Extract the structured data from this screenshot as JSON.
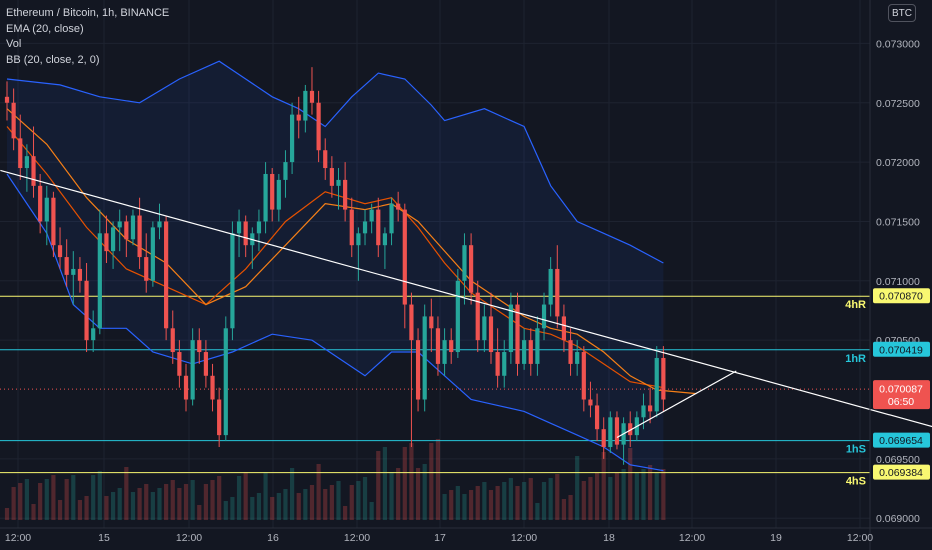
{
  "legend": {
    "symbol": "Ethereum / Bitcoin, 1h, BINANCE",
    "ema": "EMA (20, close)",
    "vol": "Vol",
    "bb": "BB (20, close, 2, 0)"
  },
  "currency_badge": "BTC",
  "colors": {
    "background": "#131722",
    "grid": "#1e2330",
    "up": "#26a69a",
    "down": "#ef5350",
    "bb": "#2962ff",
    "ema": "#f57f17",
    "yellow_level": "#f9f871",
    "cyan_level": "#26c6da",
    "trendline": "#ffffff"
  },
  "chart_data": {
    "type": "candlestick",
    "interval": "1h",
    "grid": true,
    "y_axis": {
      "scale": "linear",
      "range": [
        0.0689,
        0.0732
      ],
      "ticks": [
        "0.073000",
        "0.072500",
        "0.072000",
        "0.071500",
        "0.071000",
        "0.070500",
        "0.069500",
        "0.069000"
      ]
    },
    "x_axis": {
      "ticks": [
        "12:00",
        "15",
        "12:00",
        "16",
        "12:00",
        "17",
        "12:00",
        "18",
        "12:00",
        "19",
        "12:00"
      ]
    },
    "levels": [
      {
        "label": "4hR",
        "price": "0.070870",
        "value": 0.07087,
        "color": "#f9f871"
      },
      {
        "label": "1hR",
        "price": "0.070419",
        "value": 0.070419,
        "color": "#26c6da"
      },
      {
        "label": "1hS",
        "price": "0.069654",
        "value": 0.069654,
        "color": "#26c6da"
      },
      {
        "label": "4hS",
        "price": "0.069384",
        "value": 0.069384,
        "color": "#f9f871"
      }
    ],
    "current_price": {
      "price": "0.070087",
      "countdown": "06:50",
      "value": 0.070087
    },
    "trendline": {
      "from": [
        -1,
        0.07193
      ],
      "to": [
        141,
        0.06975
      ]
    },
    "triangle_upper": {
      "from": [
        92,
        0.06968
      ],
      "to": [
        110,
        0.07024
      ]
    },
    "candles": [
      [
        0.07255,
        0.07268,
        0.07235,
        0.0725
      ],
      [
        0.0725,
        0.07262,
        0.0721,
        0.0722
      ],
      [
        0.0722,
        0.0724,
        0.07185,
        0.07195
      ],
      [
        0.07195,
        0.07215,
        0.07175,
        0.07205
      ],
      [
        0.07205,
        0.0723,
        0.0717,
        0.0718
      ],
      [
        0.0718,
        0.0719,
        0.0714,
        0.0715
      ],
      [
        0.0715,
        0.0718,
        0.0713,
        0.0717
      ],
      [
        0.0717,
        0.07175,
        0.0712,
        0.0713
      ],
      [
        0.0713,
        0.07145,
        0.0711,
        0.0712
      ],
      [
        0.0712,
        0.07135,
        0.07095,
        0.07105
      ],
      [
        0.07105,
        0.07125,
        0.0708,
        0.0711
      ],
      [
        0.0711,
        0.0712,
        0.0709,
        0.071
      ],
      [
        0.071,
        0.07115,
        0.0704,
        0.0705
      ],
      [
        0.0705,
        0.07075,
        0.0704,
        0.0706
      ],
      [
        0.0706,
        0.0716,
        0.07055,
        0.0714
      ],
      [
        0.0714,
        0.07155,
        0.07115,
        0.07125
      ],
      [
        0.07125,
        0.0715,
        0.0711,
        0.07145
      ],
      [
        0.07145,
        0.0716,
        0.07125,
        0.0715
      ],
      [
        0.0715,
        0.07155,
        0.0712,
        0.07135
      ],
      [
        0.07135,
        0.0716,
        0.0713,
        0.07155
      ],
      [
        0.07155,
        0.0717,
        0.0711,
        0.0712
      ],
      [
        0.0712,
        0.0714,
        0.0709,
        0.071
      ],
      [
        0.071,
        0.0715,
        0.07095,
        0.07145
      ],
      [
        0.07145,
        0.07165,
        0.07135,
        0.0715
      ],
      [
        0.0715,
        0.07155,
        0.0705,
        0.0706
      ],
      [
        0.0706,
        0.07075,
        0.0703,
        0.0704
      ],
      [
        0.0704,
        0.0705,
        0.0701,
        0.0702
      ],
      [
        0.0702,
        0.0703,
        0.0699,
        0.07
      ],
      [
        0.07,
        0.0706,
        0.06995,
        0.0705
      ],
      [
        0.0705,
        0.0706,
        0.0703,
        0.0704
      ],
      [
        0.0704,
        0.0705,
        0.0701,
        0.0702
      ],
      [
        0.0702,
        0.0703,
        0.0699,
        0.07
      ],
      [
        0.07,
        0.0701,
        0.0696,
        0.0697
      ],
      [
        0.0697,
        0.0707,
        0.06965,
        0.0706
      ],
      [
        0.0706,
        0.0715,
        0.0705,
        0.0714
      ],
      [
        0.0714,
        0.0716,
        0.0712,
        0.0715
      ],
      [
        0.0715,
        0.07155,
        0.0712,
        0.0713
      ],
      [
        0.0713,
        0.07145,
        0.0711,
        0.0714
      ],
      [
        0.0714,
        0.0716,
        0.07125,
        0.0715
      ],
      [
        0.0715,
        0.072,
        0.0714,
        0.0719
      ],
      [
        0.0719,
        0.07195,
        0.0715,
        0.0716
      ],
      [
        0.0716,
        0.0719,
        0.0715,
        0.07185
      ],
      [
        0.07185,
        0.0721,
        0.0717,
        0.072
      ],
      [
        0.072,
        0.0725,
        0.0719,
        0.0724
      ],
      [
        0.0724,
        0.07255,
        0.0722,
        0.07235
      ],
      [
        0.07235,
        0.07265,
        0.07225,
        0.0726
      ],
      [
        0.0726,
        0.0728,
        0.0724,
        0.0725
      ],
      [
        0.0725,
        0.0726,
        0.072,
        0.0721
      ],
      [
        0.0721,
        0.0722,
        0.07185,
        0.07195
      ],
      [
        0.07195,
        0.07205,
        0.0717,
        0.0718
      ],
      [
        0.0718,
        0.07195,
        0.0716,
        0.07185
      ],
      [
        0.07185,
        0.072,
        0.0715,
        0.0716
      ],
      [
        0.0716,
        0.0717,
        0.0712,
        0.0713
      ],
      [
        0.0713,
        0.07145,
        0.071,
        0.0714
      ],
      [
        0.0714,
        0.0716,
        0.0713,
        0.0715
      ],
      [
        0.0715,
        0.07165,
        0.0714,
        0.0716
      ],
      [
        0.0716,
        0.0717,
        0.0712,
        0.0713
      ],
      [
        0.0713,
        0.07145,
        0.0711,
        0.0714
      ],
      [
        0.0714,
        0.0717,
        0.0713,
        0.07165
      ],
      [
        0.07165,
        0.07175,
        0.0715,
        0.0716
      ],
      [
        0.0716,
        0.07165,
        0.0706,
        0.0708
      ],
      [
        0.0708,
        0.0709,
        0.0696,
        0.0705
      ],
      [
        0.0705,
        0.0706,
        0.0699,
        0.07
      ],
      [
        0.07,
        0.0708,
        0.0699,
        0.0707
      ],
      [
        0.0707,
        0.07085,
        0.0704,
        0.0706
      ],
      [
        0.0706,
        0.0707,
        0.0702,
        0.0703
      ],
      [
        0.0703,
        0.0706,
        0.0702,
        0.0705
      ],
      [
        0.0705,
        0.0706,
        0.0703,
        0.0704
      ],
      [
        0.0704,
        0.0711,
        0.07035,
        0.071
      ],
      [
        0.071,
        0.0714,
        0.0708,
        0.0713
      ],
      [
        0.0713,
        0.0714,
        0.0708,
        0.0709
      ],
      [
        0.0709,
        0.071,
        0.0704,
        0.0705
      ],
      [
        0.0705,
        0.0708,
        0.0704,
        0.0707
      ],
      [
        0.0707,
        0.0709,
        0.0703,
        0.0704
      ],
      [
        0.0704,
        0.0706,
        0.0701,
        0.0702
      ],
      [
        0.0702,
        0.0705,
        0.0701,
        0.0704
      ],
      [
        0.0704,
        0.0709,
        0.0703,
        0.0708
      ],
      [
        0.0708,
        0.0709,
        0.0702,
        0.0703
      ],
      [
        0.0703,
        0.0706,
        0.07025,
        0.0705
      ],
      [
        0.0705,
        0.0706,
        0.0702,
        0.0703
      ],
      [
        0.0703,
        0.0707,
        0.0702,
        0.0706
      ],
      [
        0.0706,
        0.0709,
        0.0705,
        0.0708
      ],
      [
        0.0708,
        0.0712,
        0.0707,
        0.0711
      ],
      [
        0.0711,
        0.0713,
        0.0706,
        0.0707
      ],
      [
        0.0707,
        0.0708,
        0.0704,
        0.0705
      ],
      [
        0.0705,
        0.0706,
        0.0702,
        0.0703
      ],
      [
        0.0703,
        0.0705,
        0.0702,
        0.0704
      ],
      [
        0.0704,
        0.07045,
        0.0699,
        0.07
      ],
      [
        0.07,
        0.07015,
        0.06985,
        0.06995
      ],
      [
        0.06995,
        0.07005,
        0.06965,
        0.06975
      ],
      [
        0.06975,
        0.06985,
        0.0695,
        0.0696
      ],
      [
        0.0696,
        0.0699,
        0.06955,
        0.06985
      ],
      [
        0.06985,
        0.0699,
        0.06958,
        0.06962
      ],
      [
        0.06962,
        0.06985,
        0.06945,
        0.0698
      ],
      [
        0.0698,
        0.0699,
        0.0696,
        0.0697
      ],
      [
        0.0697,
        0.0699,
        0.06965,
        0.06985
      ],
      [
        0.06985,
        0.07005,
        0.06975,
        0.06995
      ],
      [
        0.06995,
        0.0701,
        0.0698,
        0.0699
      ],
      [
        0.0699,
        0.07045,
        0.06985,
        0.07035
      ],
      [
        0.07035,
        0.07045,
        0.0699,
        0.07
      ]
    ],
    "bb_upper": [
      [
        0,
        0.0727
      ],
      [
        8,
        0.07265
      ],
      [
        14,
        0.07255
      ],
      [
        20,
        0.0725
      ],
      [
        26,
        0.0727
      ],
      [
        32,
        0.07285
      ],
      [
        36,
        0.0727
      ],
      [
        40,
        0.07255
      ],
      [
        44,
        0.07245
      ],
      [
        48,
        0.0723
      ],
      [
        52,
        0.07255
      ],
      [
        56,
        0.07275
      ],
      [
        60,
        0.0727
      ],
      [
        64,
        0.07248
      ],
      [
        66,
        0.07235
      ],
      [
        72,
        0.07245
      ],
      [
        78,
        0.0723
      ],
      [
        82,
        0.0718
      ],
      [
        86,
        0.0715
      ],
      [
        90,
        0.0714
      ],
      [
        94,
        0.0713
      ],
      [
        99,
        0.07115
      ]
    ],
    "bb_lower": [
      [
        0,
        0.0719
      ],
      [
        6,
        0.0714
      ],
      [
        10,
        0.0708
      ],
      [
        14,
        0.0706
      ],
      [
        18,
        0.0706
      ],
      [
        22,
        0.0704
      ],
      [
        28,
        0.0703
      ],
      [
        34,
        0.0704
      ],
      [
        40,
        0.07055
      ],
      [
        46,
        0.0705
      ],
      [
        50,
        0.07035
      ],
      [
        54,
        0.0702
      ],
      [
        58,
        0.0704
      ],
      [
        62,
        0.0704
      ],
      [
        66,
        0.0702
      ],
      [
        70,
        0.07
      ],
      [
        74,
        0.06995
      ],
      [
        78,
        0.0699
      ],
      [
        82,
        0.0698
      ],
      [
        86,
        0.0697
      ],
      [
        90,
        0.0696
      ],
      [
        94,
        0.06945
      ],
      [
        99,
        0.0694
      ]
    ],
    "ema": [
      [
        0,
        0.07245
      ],
      [
        6,
        0.07215
      ],
      [
        12,
        0.0717
      ],
      [
        18,
        0.07135
      ],
      [
        24,
        0.07115
      ],
      [
        30,
        0.0708
      ],
      [
        36,
        0.07095
      ],
      [
        42,
        0.0713
      ],
      [
        48,
        0.07165
      ],
      [
        54,
        0.0716
      ],
      [
        58,
        0.07165
      ],
      [
        62,
        0.0715
      ],
      [
        66,
        0.07125
      ],
      [
        70,
        0.071
      ],
      [
        74,
        0.07085
      ],
      [
        78,
        0.0707
      ],
      [
        82,
        0.0706
      ],
      [
        86,
        0.07055
      ],
      [
        90,
        0.0704
      ],
      [
        94,
        0.0702
      ],
      [
        98,
        0.07008
      ],
      [
        104,
        0.07005
      ]
    ],
    "basis": [
      [
        0,
        0.0723
      ],
      [
        6,
        0.0719
      ],
      [
        12,
        0.07145
      ],
      [
        18,
        0.0711
      ],
      [
        24,
        0.07095
      ],
      [
        30,
        0.0708
      ],
      [
        36,
        0.0711
      ],
      [
        42,
        0.0715
      ],
      [
        48,
        0.07175
      ],
      [
        54,
        0.07165
      ],
      [
        58,
        0.0717
      ],
      [
        62,
        0.07145
      ],
      [
        66,
        0.07115
      ],
      [
        70,
        0.0709
      ],
      [
        74,
        0.07075
      ],
      [
        78,
        0.0706
      ],
      [
        82,
        0.07055
      ],
      [
        86,
        0.07045
      ],
      [
        90,
        0.0703
      ],
      [
        94,
        0.07015
      ],
      [
        99,
        0.0701
      ]
    ]
  }
}
